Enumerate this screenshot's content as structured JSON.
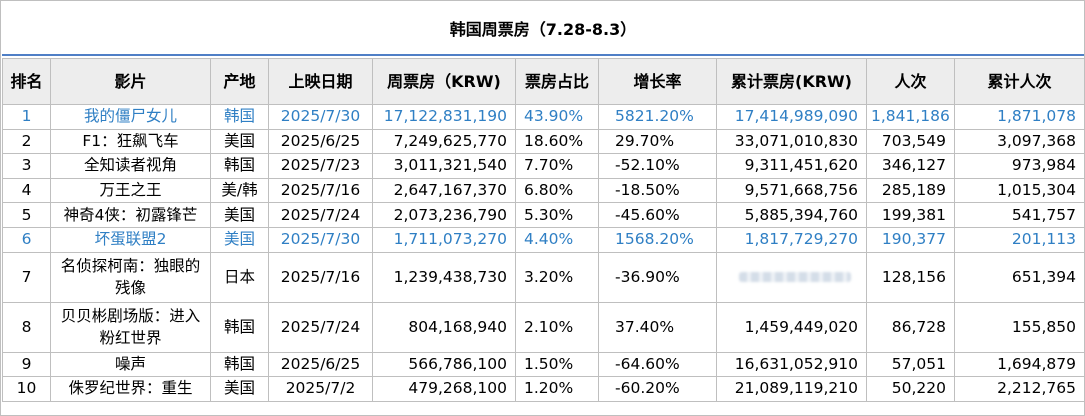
{
  "title": "韩国周票房（7.28-8.3）",
  "colors": {
    "accent_line": "#4f7fc6",
    "highlight_text": "#2f7fc4",
    "header_bg": "#ededed"
  },
  "columns": [
    "排名",
    "影片",
    "产地",
    "上映日期",
    "周票房（KRW)",
    "票房占比",
    "增长率",
    "累计票房(KRW)",
    "人次",
    "累计人次"
  ],
  "rows": [
    {
      "rank": "1",
      "title": "我的僵尸女儿",
      "origin": "韩国",
      "date": "2025/7/30",
      "weekly": "17,122,831,190",
      "share": "43.90%",
      "growth": "5821.20%",
      "total": "17,414,989,090",
      "admissions": "1,841,186",
      "total_admissions": "1,871,078",
      "highlight": true
    },
    {
      "rank": "2",
      "title": "F1：狂飙飞车",
      "origin": "美国",
      "date": "2025/6/25",
      "weekly": "7,249,625,770",
      "share": "18.60%",
      "growth": "29.70%",
      "total": "33,071,010,830",
      "admissions": "703,549",
      "total_admissions": "3,097,368"
    },
    {
      "rank": "3",
      "title": "全知读者视角",
      "origin": "韩国",
      "date": "2025/7/23",
      "weekly": "3,011,321,540",
      "share": "7.70%",
      "growth": "-52.10%",
      "total": "9,311,451,620",
      "admissions": "346,127",
      "total_admissions": "973,984"
    },
    {
      "rank": "4",
      "title": "万王之王",
      "origin": "美/韩",
      "date": "2025/7/16",
      "weekly": "2,647,167,370",
      "share": "6.80%",
      "growth": "-18.50%",
      "total": "9,571,668,756",
      "admissions": "285,189",
      "total_admissions": "1,015,304"
    },
    {
      "rank": "5",
      "title": "神奇4侠：初露锋芒",
      "origin": "美国",
      "date": "2025/7/24",
      "weekly": "2,073,236,790",
      "share": "5.30%",
      "growth": "-45.60%",
      "total": "5,885,394,760",
      "admissions": "199,381",
      "total_admissions": "541,757"
    },
    {
      "rank": "6",
      "title": "坏蛋联盟2",
      "origin": "美国",
      "date": "2025/7/30",
      "weekly": "1,711,073,270",
      "share": "4.40%",
      "growth": "1568.20%",
      "total": "1,817,729,270",
      "admissions": "190,377",
      "total_admissions": "201,113",
      "highlight": true
    },
    {
      "rank": "7",
      "title": "名侦探柯南：独眼的残像",
      "origin": "日本",
      "date": "2025/7/16",
      "weekly": "1,239,438,730",
      "share": "3.20%",
      "growth": "-36.90%",
      "total": "",
      "admissions": "128,156",
      "total_admissions": "651,394",
      "tall": true,
      "total_obscured": true
    },
    {
      "rank": "8",
      "title": "贝贝彬剧场版：进入粉红世界",
      "origin": "韩国",
      "date": "2025/7/24",
      "weekly": "804,168,940",
      "share": "2.10%",
      "growth": "37.40%",
      "total": "1,459,449,020",
      "admissions": "86,728",
      "total_admissions": "155,850",
      "tall": true
    },
    {
      "rank": "9",
      "title": "噪声",
      "origin": "韩国",
      "date": "2025/6/25",
      "weekly": "566,786,100",
      "share": "1.50%",
      "growth": "-64.60%",
      "total": "16,631,052,910",
      "admissions": "57,051",
      "total_admissions": "1,694,879"
    },
    {
      "rank": "10",
      "title": "侏罗纪世界：重生",
      "origin": "美国",
      "date": "2025/7/2",
      "weekly": "479,268,100",
      "share": "1.20%",
      "growth": "-60.20%",
      "total": "21,089,119,210",
      "admissions": "50,220",
      "total_admissions": "2,212,765"
    }
  ]
}
